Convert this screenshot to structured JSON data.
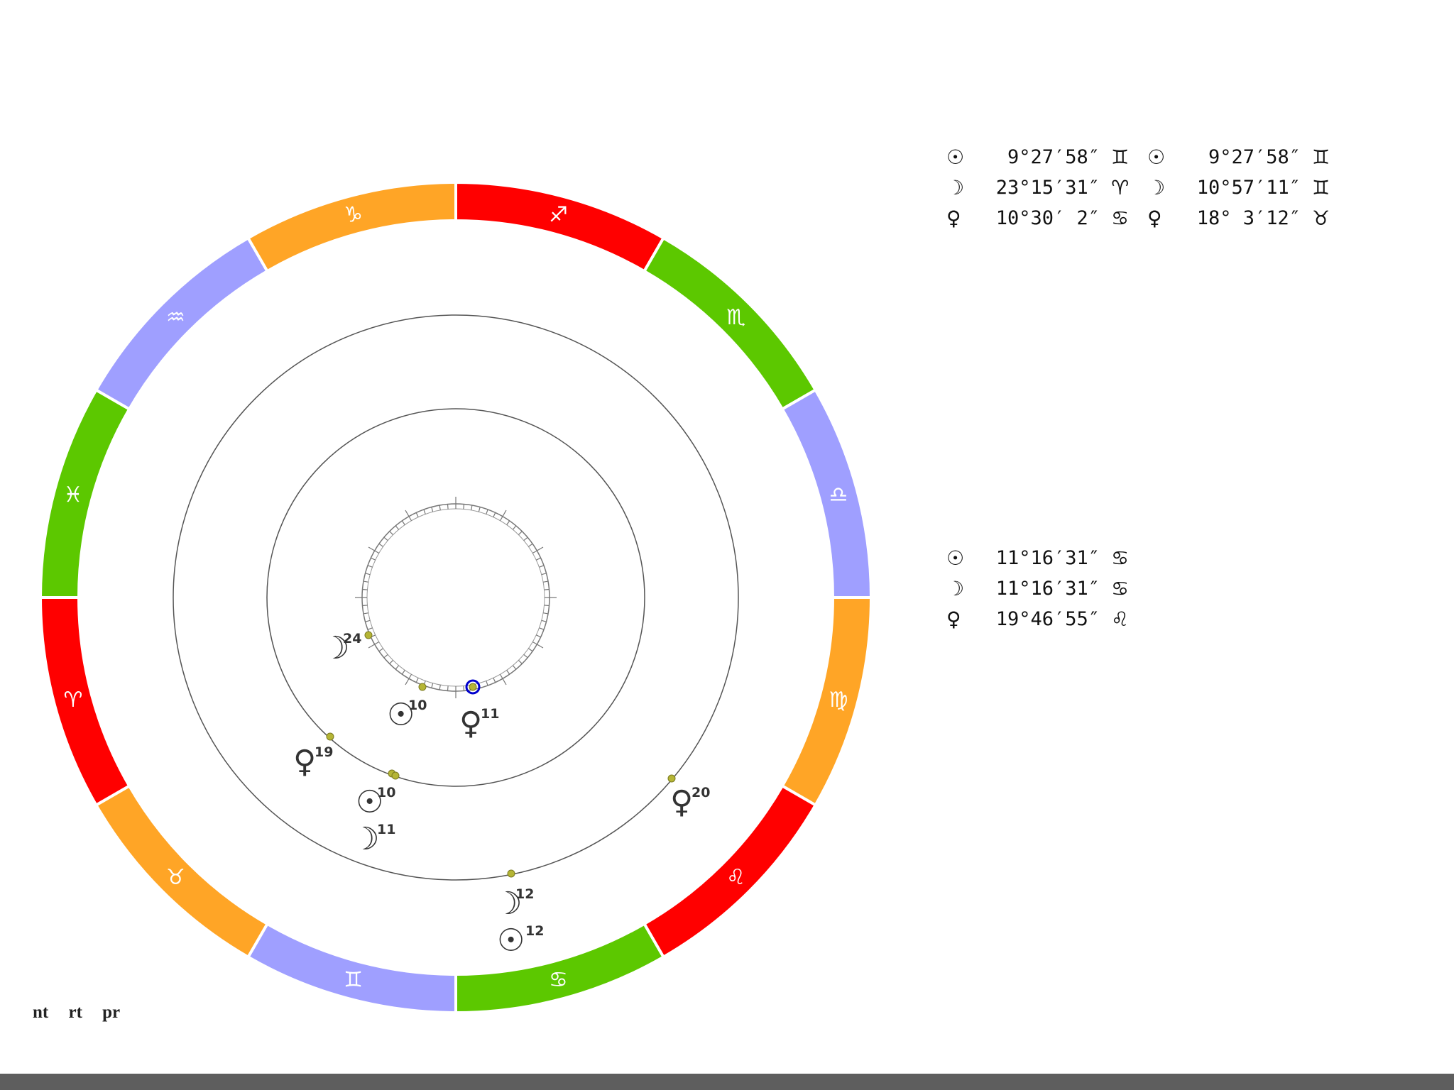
{
  "chart_data": {
    "type": "radial",
    "zodiac_ring": [
      {
        "sign": "sagittarius",
        "glyph": "♐",
        "color": "#ff0000"
      },
      {
        "sign": "scorpio",
        "glyph": "♏",
        "color": "#5cc800"
      },
      {
        "sign": "libra",
        "glyph": "♎",
        "color": "#9f9fff"
      },
      {
        "sign": "virgo",
        "glyph": "♍",
        "color": "#ffa526"
      },
      {
        "sign": "leo",
        "glyph": "♌",
        "color": "#ff0000"
      },
      {
        "sign": "cancer",
        "glyph": "♋",
        "color": "#5cc800"
      },
      {
        "sign": "gemini",
        "glyph": "♊",
        "color": "#9f9fff"
      },
      {
        "sign": "taurus",
        "glyph": "♉",
        "color": "#ffa526"
      },
      {
        "sign": "aries",
        "glyph": "♈",
        "color": "#ff0000"
      },
      {
        "sign": "pisces",
        "glyph": "♓",
        "color": "#5cc800"
      },
      {
        "sign": "aquarius",
        "glyph": "♒",
        "color": "#9f9fff"
      },
      {
        "sign": "capricorn",
        "glyph": "♑",
        "color": "#ffa526"
      }
    ],
    "inner_ring_markers": [
      {
        "planet": "moon",
        "glyph": "☽",
        "degree_label": "24"
      },
      {
        "planet": "sun",
        "glyph": "☉",
        "degree_label": "10"
      },
      {
        "planet": "venus",
        "glyph": "♀",
        "degree_label": "11",
        "highlight": true
      }
    ],
    "middle_ring_markers": [
      {
        "planet": "venus",
        "glyph": "♀",
        "degree_label": "19"
      },
      {
        "planet": "sun",
        "glyph": "☉",
        "degree_label": "10"
      },
      {
        "planet": "moon",
        "glyph": "☽",
        "degree_label": "11"
      }
    ],
    "outer_ring_markers": [
      {
        "planet": "venus",
        "glyph": "♀",
        "degree_label": "20"
      },
      {
        "planet": "moon",
        "glyph": "☽",
        "degree_label": "12"
      },
      {
        "planet": "sun",
        "glyph": "☉",
        "degree_label": "12"
      }
    ],
    "colors": {
      "marker_dot": "#b5b535",
      "highlight": "#0000cc",
      "circle_line": "#555555"
    }
  },
  "tables": {
    "top_left": [
      {
        "glyph": "☉",
        "value": "9°27′58″",
        "sign": "♊"
      },
      {
        "glyph": "☽",
        "value": "23°15′31″",
        "sign": "♈"
      },
      {
        "glyph": "♀",
        "value": "10°30′ 2″",
        "sign": "♋"
      }
    ],
    "top_right": [
      {
        "glyph": "☉",
        "value": "9°27′58″",
        "sign": "♊"
      },
      {
        "glyph": "☽",
        "value": "10°57′11″",
        "sign": "♊"
      },
      {
        "glyph": "♀",
        "value": "18° 3′12″",
        "sign": "♉"
      }
    ],
    "middle": [
      {
        "glyph": "☉",
        "value": "11°16′31″",
        "sign": "♋"
      },
      {
        "glyph": "☽",
        "value": "11°16′31″",
        "sign": "♋"
      },
      {
        "glyph": "♀",
        "value": "19°46′55″",
        "sign": "♌"
      }
    ]
  },
  "links": [
    "nt",
    "rt",
    "pr"
  ]
}
